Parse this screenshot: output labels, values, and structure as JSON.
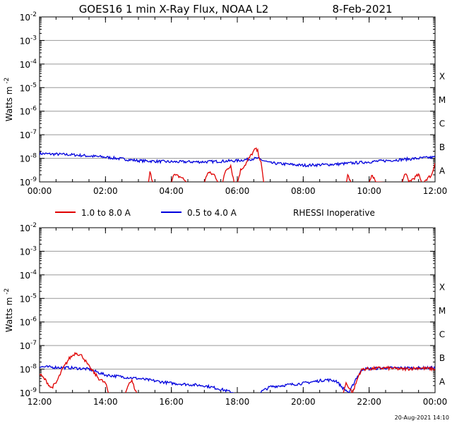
{
  "title": "GOES16  1 min X-Ray Flux, NOAA L2",
  "date": "8-Feb-2021",
  "footer_timestamp": "20-Aug-2021 14:10",
  "ylabel_text": "Watts m",
  "ylabel_exp": "-2",
  "legend": [
    {
      "label": "1.0 to 8.0 A",
      "color": "#e00000"
    },
    {
      "label": "0.5 to 4.0 A",
      "color": "#0000dd"
    },
    {
      "label": "RHESSI Inoperative",
      "color": ""
    }
  ],
  "colors": {
    "long": "#e00000",
    "short": "#0000dd",
    "grid": "#999999",
    "axis": "#000000"
  },
  "chart_data": [
    {
      "type": "line",
      "title": "GOES16  1 min X-Ray Flux, NOAA L2  8-Feb-2021",
      "xlabel": "",
      "ylabel": "Watts m-2",
      "yscale": "log",
      "ylim_exp": [
        -9,
        -2
      ],
      "ytick_labels": [
        "10^-2",
        "10^-3",
        "10^-4",
        "10^-5",
        "10^-6",
        "10^-7",
        "10^-8",
        "10^-9"
      ],
      "xlim_hours": [
        0,
        12
      ],
      "xtick_labels": [
        "00:00",
        "02:00",
        "04:00",
        "06:00",
        "08:00",
        "10:00",
        "12:00"
      ],
      "flare_classes": [
        "X",
        "M",
        "C",
        "B",
        "A"
      ],
      "series": [
        {
          "name": "1.0 to 8.0 A",
          "color": "#e00000",
          "points": [
            [
              0,
              -9.05
            ],
            [
              3.3,
              -9.05
            ],
            [
              3.35,
              -8.6
            ],
            [
              3.45,
              -9.05
            ],
            [
              4.0,
              -9.05
            ],
            [
              4.05,
              -8.7
            ],
            [
              4.3,
              -8.8
            ],
            [
              4.5,
              -9.05
            ],
            [
              5.0,
              -9.05
            ],
            [
              5.1,
              -8.6
            ],
            [
              5.3,
              -8.7
            ],
            [
              5.45,
              -9.05
            ],
            [
              5.55,
              -9.05
            ],
            [
              5.65,
              -8.5
            ],
            [
              5.8,
              -8.3
            ],
            [
              5.9,
              -9.0
            ],
            [
              6.0,
              -9.05
            ],
            [
              6.1,
              -8.5
            ],
            [
              6.25,
              -8.25
            ],
            [
              6.4,
              -7.9
            ],
            [
              6.55,
              -7.6
            ],
            [
              6.62,
              -7.7
            ],
            [
              6.72,
              -8.2
            ],
            [
              6.8,
              -9.0
            ],
            [
              6.9,
              -9.05
            ],
            [
              9.3,
              -9.05
            ],
            [
              9.35,
              -8.7
            ],
            [
              9.45,
              -9.05
            ],
            [
              10.0,
              -9.05
            ],
            [
              10.1,
              -8.7
            ],
            [
              10.2,
              -9.0
            ],
            [
              11.0,
              -9.05
            ],
            [
              11.1,
              -8.6
            ],
            [
              11.2,
              -9.0
            ],
            [
              11.5,
              -8.7
            ],
            [
              11.6,
              -9.05
            ],
            [
              11.9,
              -8.7
            ],
            [
              12.0,
              -8.2
            ]
          ]
        },
        {
          "name": "0.5 to 4.0 A",
          "color": "#0000dd",
          "points": [
            [
              0,
              -7.8
            ],
            [
              1.0,
              -7.85
            ],
            [
              2.0,
              -7.95
            ],
            [
              3.0,
              -8.1
            ],
            [
              4.0,
              -8.15
            ],
            [
              5.0,
              -8.15
            ],
            [
              6.0,
              -8.1
            ],
            [
              6.6,
              -8.0
            ],
            [
              7.0,
              -8.2
            ],
            [
              8.0,
              -8.3
            ],
            [
              9.0,
              -8.25
            ],
            [
              10.0,
              -8.15
            ],
            [
              11.0,
              -8.05
            ],
            [
              12.0,
              -7.95
            ]
          ]
        }
      ]
    },
    {
      "type": "line",
      "title": "",
      "xlabel": "",
      "ylabel": "Watts m-2",
      "yscale": "log",
      "ylim_exp": [
        -9,
        -2
      ],
      "ytick_labels": [
        "10^-2",
        "10^-3",
        "10^-4",
        "10^-5",
        "10^-6",
        "10^-7",
        "10^-8",
        "10^-9"
      ],
      "xlim_hours": [
        12,
        24
      ],
      "xtick_labels": [
        "12:00",
        "14:00",
        "16:00",
        "18:00",
        "20:00",
        "22:00",
        "00:00"
      ],
      "flare_classes": [
        "X",
        "M",
        "C",
        "B",
        "A"
      ],
      "series": [
        {
          "name": "1.0 to 8.0 A",
          "color": "#e00000",
          "points": [
            [
              12.0,
              -8.2
            ],
            [
              12.2,
              -8.5
            ],
            [
              12.35,
              -8.8
            ],
            [
              12.5,
              -8.6
            ],
            [
              12.7,
              -8.0
            ],
            [
              12.9,
              -7.55
            ],
            [
              13.1,
              -7.3
            ],
            [
              13.3,
              -7.45
            ],
            [
              13.5,
              -7.9
            ],
            [
              13.8,
              -8.4
            ],
            [
              14.0,
              -8.6
            ],
            [
              14.1,
              -9.05
            ],
            [
              14.6,
              -9.05
            ],
            [
              14.7,
              -8.6
            ],
            [
              14.8,
              -8.5
            ],
            [
              14.95,
              -9.05
            ],
            [
              21.2,
              -9.05
            ],
            [
              21.3,
              -8.6
            ],
            [
              21.5,
              -9.0
            ],
            [
              21.7,
              -8.2
            ],
            [
              21.8,
              -8.0
            ],
            [
              22.5,
              -7.95
            ],
            [
              23.0,
              -8.0
            ],
            [
              23.5,
              -7.95
            ],
            [
              24.0,
              -8.0
            ]
          ]
        },
        {
          "name": "0.5 to 4.0 A",
          "color": "#0000dd",
          "points": [
            [
              12.0,
              -7.9
            ],
            [
              13.0,
              -7.95
            ],
            [
              13.5,
              -8.0
            ],
            [
              14.0,
              -8.25
            ],
            [
              15.0,
              -8.4
            ],
            [
              16.0,
              -8.6
            ],
            [
              17.0,
              -8.7
            ],
            [
              17.5,
              -8.85
            ],
            [
              18.0,
              -9.05
            ],
            [
              18.6,
              -9.05
            ],
            [
              19.0,
              -8.75
            ],
            [
              20.0,
              -8.6
            ],
            [
              20.7,
              -8.45
            ],
            [
              21.0,
              -8.5
            ],
            [
              21.2,
              -8.8
            ],
            [
              21.4,
              -9.0
            ],
            [
              21.6,
              -8.4
            ],
            [
              21.8,
              -8.0
            ],
            [
              22.5,
              -7.95
            ],
            [
              23.5,
              -7.95
            ],
            [
              24.0,
              -7.95
            ]
          ]
        }
      ]
    }
  ]
}
